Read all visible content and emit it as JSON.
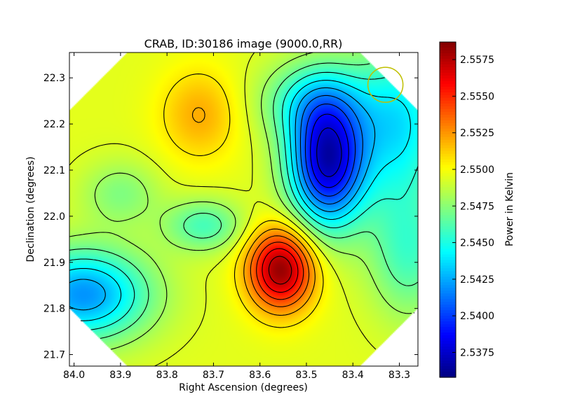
{
  "chart_data": {
    "type": "heatmap",
    "title": "CRAB, ID:30186 image (9000.0,RR)",
    "xlabel": "Right Ascension (degrees)",
    "ylabel": "Declination (degrees)",
    "xlim": [
      84.01,
      83.26
    ],
    "ylim": [
      21.675,
      22.355
    ],
    "x_ticks": [
      84.0,
      83.9,
      83.8,
      83.7,
      83.6,
      83.5,
      83.4,
      83.3
    ],
    "x_tick_labels": [
      "84.0",
      "83.9",
      "83.8",
      "83.7",
      "83.6",
      "83.5",
      "83.4",
      "83.3"
    ],
    "y_ticks": [
      21.7,
      21.8,
      21.9,
      22.0,
      22.1,
      22.2,
      22.3
    ],
    "y_tick_labels": [
      "21.7",
      "21.8",
      "21.9",
      "22.0",
      "22.1",
      "22.2",
      "22.3"
    ],
    "colorbar": {
      "label": "Power in Kelvin",
      "range": [
        2.5358,
        2.5587
      ],
      "ticks": [
        2.5375,
        2.54,
        2.5425,
        2.545,
        2.5475,
        2.55,
        2.5525,
        2.555,
        2.5575
      ],
      "tick_labels": [
        "2.5375",
        "2.5400",
        "2.5425",
        "2.5450",
        "2.5475",
        "2.5500",
        "2.5525",
        "2.5550",
        "2.5575"
      ],
      "colormap": "jet"
    },
    "background_level": 2.5495,
    "features": [
      {
        "kind": "peak",
        "ra": 83.555,
        "dec": 21.885,
        "amplitude": 0.0088,
        "sigma_ra": 0.05,
        "sigma_dec": 0.062
      },
      {
        "kind": "trough",
        "ra": 83.455,
        "dec": 22.12,
        "amplitude": -0.0122,
        "sigma_ra": 0.058,
        "sigma_dec": 0.1
      },
      {
        "kind": "trough",
        "ra": 83.49,
        "dec": 22.25,
        "amplitude": -0.0035,
        "sigma_ra": 0.08,
        "sigma_dec": 0.06
      },
      {
        "kind": "peak",
        "ra": 83.73,
        "dec": 22.22,
        "amplitude": 0.0025,
        "sigma_ra": 0.06,
        "sigma_dec": 0.07
      },
      {
        "kind": "trough",
        "ra": 83.98,
        "dec": 21.83,
        "amplitude": -0.0075,
        "sigma_ra": 0.1,
        "sigma_dec": 0.07
      },
      {
        "kind": "trough",
        "ra": 83.72,
        "dec": 21.98,
        "amplitude": -0.0035,
        "sigma_ra": 0.06,
        "sigma_dec": 0.04
      },
      {
        "kind": "trough",
        "ra": 83.3,
        "dec": 22.2,
        "amplitude": -0.0055,
        "sigma_ra": 0.07,
        "sigma_dec": 0.12
      },
      {
        "kind": "trough",
        "ra": 83.9,
        "dec": 22.05,
        "amplitude": -0.0022,
        "sigma_ra": 0.06,
        "sigma_dec": 0.05
      },
      {
        "kind": "trough",
        "ra": 83.28,
        "dec": 21.92,
        "amplitude": -0.0035,
        "sigma_ra": 0.06,
        "sigma_dec": 0.1
      }
    ],
    "contour_levels": [
      2.5376,
      2.5389,
      2.5402,
      2.5415,
      2.5428,
      2.5441,
      2.5454,
      2.5467,
      2.548,
      2.5493,
      2.5506,
      2.5519,
      2.5532,
      2.5545,
      2.5558,
      2.5571
    ],
    "beam": {
      "ra": 83.33,
      "dec": 22.285,
      "radius_deg": 0.038,
      "color": "#bfbf00"
    },
    "coverage": "diamond",
    "grid": false,
    "colors": {
      "contour": "#000000",
      "frame": "#000000",
      "beam": "#bfbf00"
    }
  }
}
